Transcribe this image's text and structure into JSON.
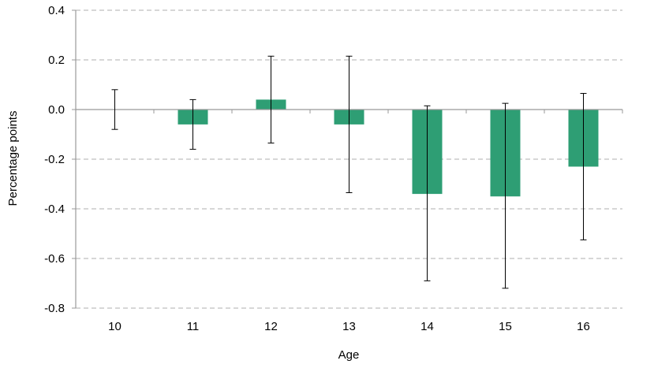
{
  "chart_data": {
    "type": "bar",
    "title": "",
    "xlabel": "Age",
    "ylabel": "Percentage points",
    "ylim": [
      -0.8,
      0.4
    ],
    "yticks": [
      0.4,
      0.2,
      0.0,
      -0.2,
      -0.4,
      -0.6,
      -0.8
    ],
    "ytick_labels": [
      "0.4",
      "0.2",
      "0.0",
      "-0.2",
      "-0.4",
      "-0.6",
      "-0.8"
    ],
    "categories": [
      "10",
      "11",
      "12",
      "13",
      "14",
      "15",
      "16"
    ],
    "series": [
      {
        "values": [
          0.0,
          -0.06,
          0.04,
          -0.06,
          -0.34,
          -0.35,
          -0.23
        ],
        "error_low": [
          -0.08,
          -0.16,
          -0.135,
          -0.335,
          -0.69,
          -0.72,
          -0.525
        ],
        "error_high": [
          0.08,
          0.04,
          0.215,
          0.215,
          0.015,
          0.025,
          0.065
        ]
      }
    ],
    "grid": true,
    "grid_style": "dashed",
    "legend": "none",
    "colors": {
      "bar": "#2e9e74",
      "grid": "#bfbfbf",
      "axis": "#999999",
      "error_bar": "#000000"
    }
  }
}
